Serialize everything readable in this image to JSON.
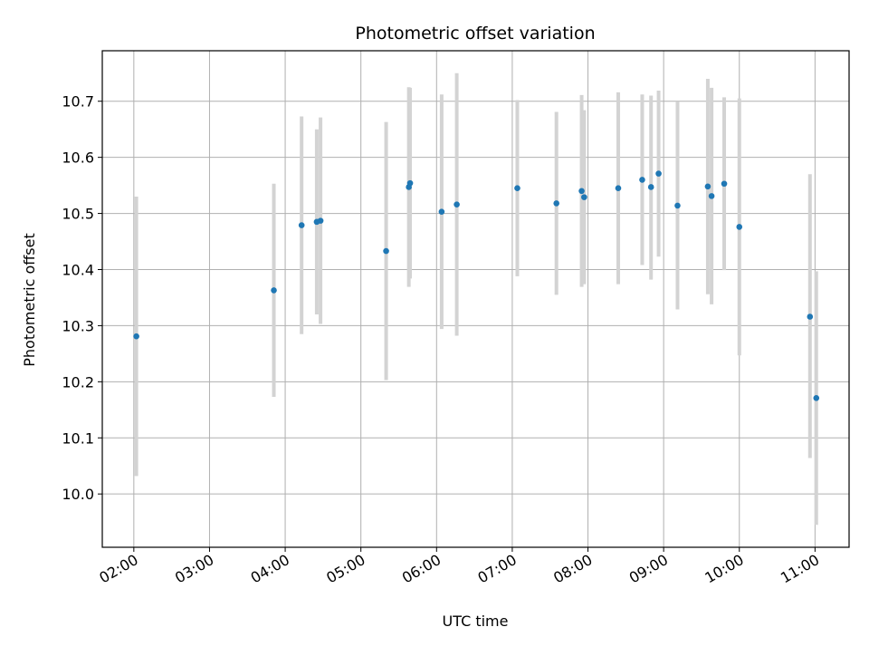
{
  "chart_data": {
    "type": "scatter",
    "title": "Photometric offset variation",
    "xlabel": "UTC time",
    "ylabel": "Photometric offset",
    "x_ticks": [
      "02:00",
      "03:00",
      "04:00",
      "05:00",
      "06:00",
      "07:00",
      "08:00",
      "09:00",
      "10:00",
      "11:00"
    ],
    "y_ticks": [
      "10.0",
      "10.1",
      "10.2",
      "10.3",
      "10.4",
      "10.5",
      "10.6",
      "10.7"
    ],
    "xlim": [
      "01:35",
      "11:27"
    ],
    "ylim": [
      9.905,
      10.79
    ],
    "grid": true,
    "colors": {
      "point": "#1f77b4",
      "errorbar": "#d3d3d3",
      "grid": "#b0b0b0",
      "axis": "#000000"
    },
    "points": [
      {
        "x": "02:02",
        "y": 10.281,
        "y_low": 10.032,
        "y_high": 10.53
      },
      {
        "x": "03:51",
        "y": 10.363,
        "y_low": 10.173,
        "y_high": 10.553
      },
      {
        "x": "04:13",
        "y": 10.479,
        "y_low": 10.285,
        "y_high": 10.673
      },
      {
        "x": "04:25",
        "y": 10.485,
        "y_low": 10.32,
        "y_high": 10.65
      },
      {
        "x": "04:28",
        "y": 10.487,
        "y_low": 10.303,
        "y_high": 10.671
      },
      {
        "x": "05:20",
        "y": 10.433,
        "y_low": 10.203,
        "y_high": 10.663
      },
      {
        "x": "05:38",
        "y": 10.547,
        "y_low": 10.369,
        "y_high": 10.725
      },
      {
        "x": "05:39",
        "y": 10.554,
        "y_low": 10.384,
        "y_high": 10.724
      },
      {
        "x": "06:04",
        "y": 10.503,
        "y_low": 10.294,
        "y_high": 10.712
      },
      {
        "x": "06:16",
        "y": 10.516,
        "y_low": 10.282,
        "y_high": 10.75
      },
      {
        "x": "07:04",
        "y": 10.545,
        "y_low": 10.388,
        "y_high": 10.702
      },
      {
        "x": "07:35",
        "y": 10.518,
        "y_low": 10.355,
        "y_high": 10.681
      },
      {
        "x": "07:55",
        "y": 10.54,
        "y_low": 10.369,
        "y_high": 10.711
      },
      {
        "x": "07:57",
        "y": 10.529,
        "y_low": 10.374,
        "y_high": 10.684
      },
      {
        "x": "08:24",
        "y": 10.545,
        "y_low": 10.374,
        "y_high": 10.716
      },
      {
        "x": "08:43",
        "y": 10.56,
        "y_low": 10.408,
        "y_high": 10.712
      },
      {
        "x": "08:50",
        "y": 10.547,
        "y_low": 10.382,
        "y_high": 10.71
      },
      {
        "x": "08:56",
        "y": 10.571,
        "y_low": 10.423,
        "y_high": 10.719
      },
      {
        "x": "09:11",
        "y": 10.514,
        "y_low": 10.329,
        "y_high": 10.699
      },
      {
        "x": "09:35",
        "y": 10.548,
        "y_low": 10.356,
        "y_high": 10.74
      },
      {
        "x": "09:38",
        "y": 10.531,
        "y_low": 10.338,
        "y_high": 10.724
      },
      {
        "x": "09:48",
        "y": 10.553,
        "y_low": 10.399,
        "y_high": 10.707
      },
      {
        "x": "10:00",
        "y": 10.476,
        "y_low": 10.247,
        "y_high": 10.705
      },
      {
        "x": "10:56",
        "y": 10.316,
        "y_low": 10.064,
        "y_high": 10.57
      },
      {
        "x": "11:01",
        "y": 10.171,
        "y_low": 9.945,
        "y_high": 10.397
      }
    ]
  }
}
